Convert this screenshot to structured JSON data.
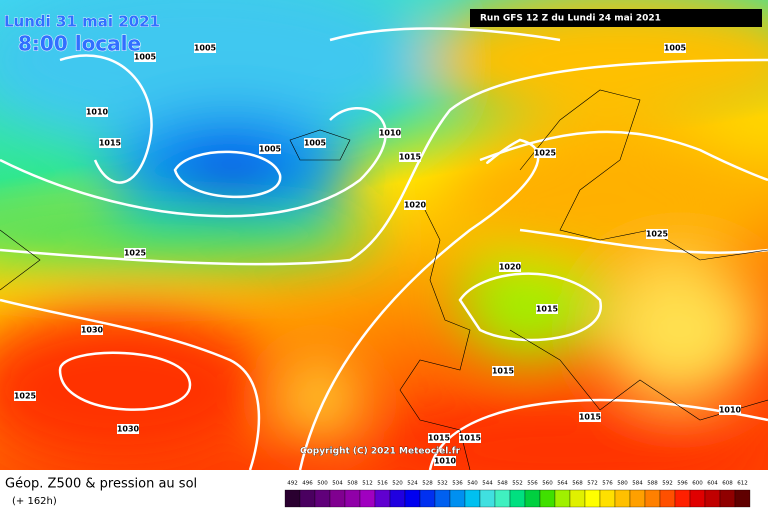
{
  "header": {
    "date": "Lundi 31 mai 2021",
    "time": "8:00 locale",
    "run": "Run GFS 12 Z du Lundi 24 mai 2021"
  },
  "isobar_labels": [
    "1005",
    "1005",
    "1010",
    "1015",
    "1005",
    "1005",
    "1010",
    "1015",
    "1020",
    "1025",
    "1030",
    "1025",
    "1030",
    "1025",
    "1025",
    "1020",
    "1015",
    "1015",
    "1015",
    "1010",
    "1015",
    "1015",
    "1010",
    "1005"
  ],
  "copyright": "Copyright (C) 2021 Meteociel.fr",
  "legend": {
    "title": "Géop. Z500 & pression au sol",
    "subtitle": "(+ 162h)",
    "scale": [
      492,
      496,
      500,
      504,
      508,
      512,
      516,
      520,
      524,
      528,
      532,
      536,
      540,
      544,
      548,
      552,
      556,
      560,
      564,
      568,
      572,
      576,
      580,
      584,
      588,
      592,
      596,
      600,
      604,
      608,
      612
    ],
    "colors": [
      "#2a0030",
      "#4a0060",
      "#60007a",
      "#800090",
      "#9000a8",
      "#a000c0",
      "#6000d0",
      "#2000e0",
      "#0000f0",
      "#0030f0",
      "#0060f0",
      "#0090f0",
      "#00c0f0",
      "#40e0e0",
      "#40f0c0",
      "#00e080",
      "#00d040",
      "#40e000",
      "#a0f000",
      "#e0f000",
      "#ffff00",
      "#ffe000",
      "#ffc000",
      "#ffa000",
      "#ff8000",
      "#ff5000",
      "#ff2000",
      "#e00000",
      "#c00000",
      "#900000",
      "#600000"
    ]
  }
}
